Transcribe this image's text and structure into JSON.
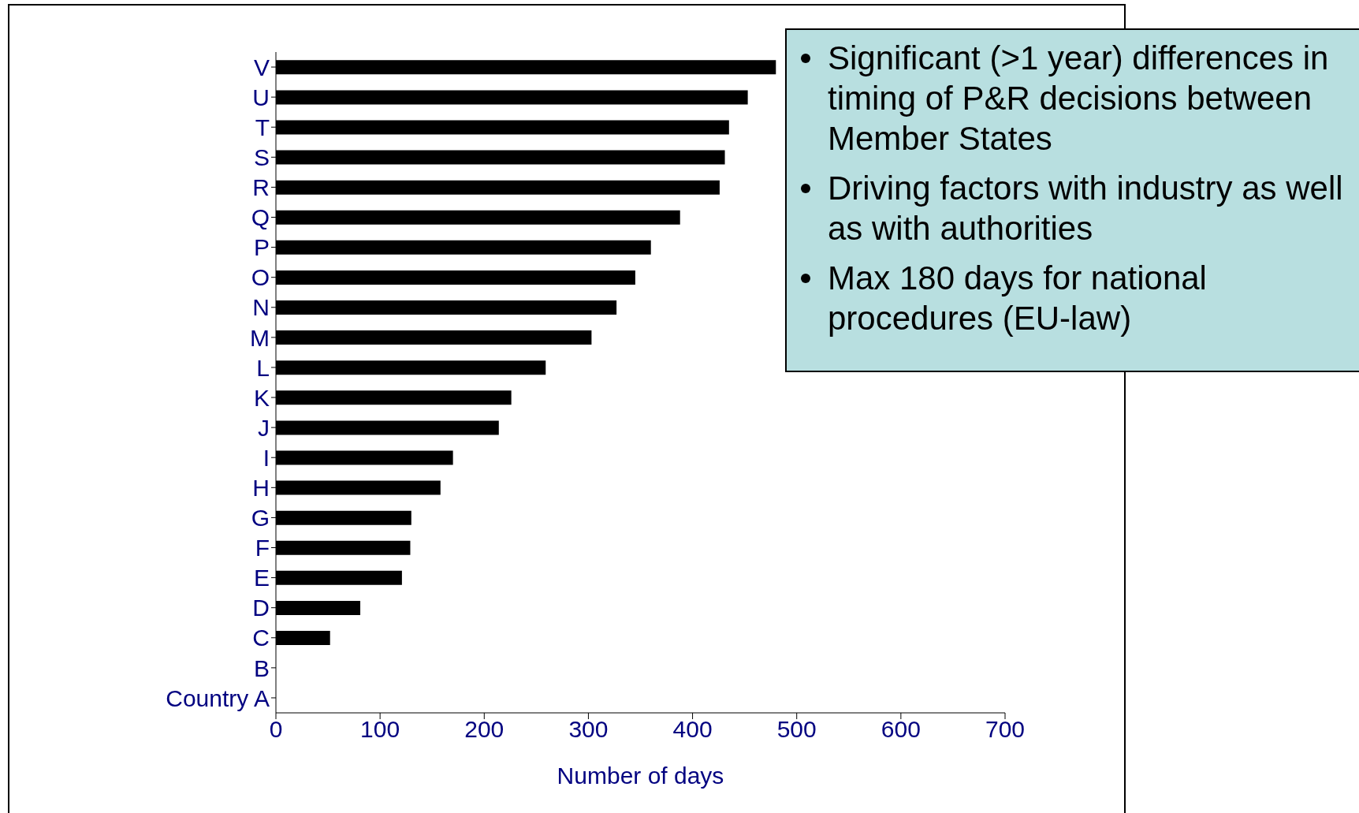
{
  "chart_data": {
    "type": "bar",
    "orientation": "horizontal",
    "xlabel": "Number of days",
    "categories": [
      "V",
      "U",
      "T",
      "S",
      "R",
      "Q",
      "P",
      "O",
      "N",
      "M",
      "L",
      "K",
      "J",
      "I",
      "H",
      "G",
      "F",
      "E",
      "D",
      "C",
      "B",
      "Country A"
    ],
    "values": [
      480,
      453,
      435,
      431,
      426,
      388,
      360,
      345,
      327,
      303,
      259,
      226,
      214,
      170,
      158,
      130,
      129,
      121,
      81,
      52,
      0,
      0
    ],
    "color": "#000000",
    "xlim": [
      0,
      700
    ],
    "xticks": [
      0,
      100,
      200,
      300,
      400,
      500,
      600,
      700
    ],
    "grid": false,
    "legend": false,
    "annotations": [
      "Significant (>1 year) differences in timing of P&R decisions between Member States",
      "Driving factors with industry as well as with authorities",
      "Max 180 days for national procedures (EU-law)"
    ]
  }
}
